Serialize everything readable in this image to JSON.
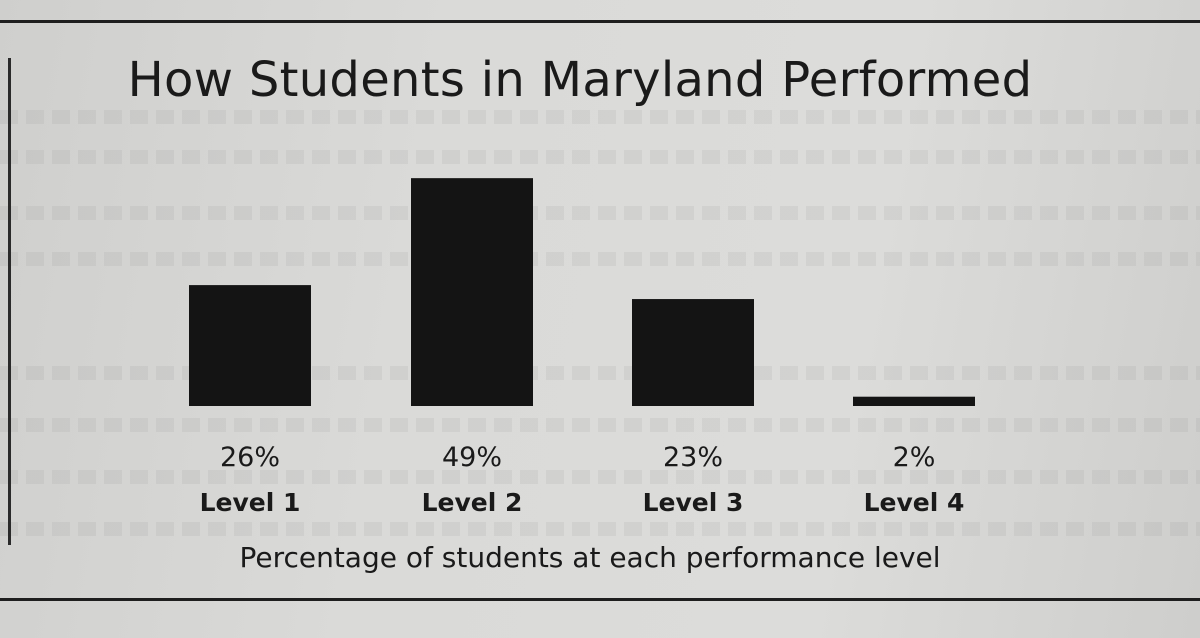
{
  "chart_data": {
    "type": "bar",
    "title": "How Students in Maryland Performed",
    "categories": [
      "Level 1",
      "Level 2",
      "Level 3",
      "Level 4"
    ],
    "values": [
      26,
      49,
      23,
      2
    ],
    "data_labels": [
      "26%",
      "49%",
      "23%",
      "2%"
    ],
    "xlabel": "Percentage of students at each performance level",
    "ylabel": "",
    "ylim": [
      0,
      50
    ],
    "grid": false,
    "legend": "none",
    "bar_color": "#141414"
  }
}
